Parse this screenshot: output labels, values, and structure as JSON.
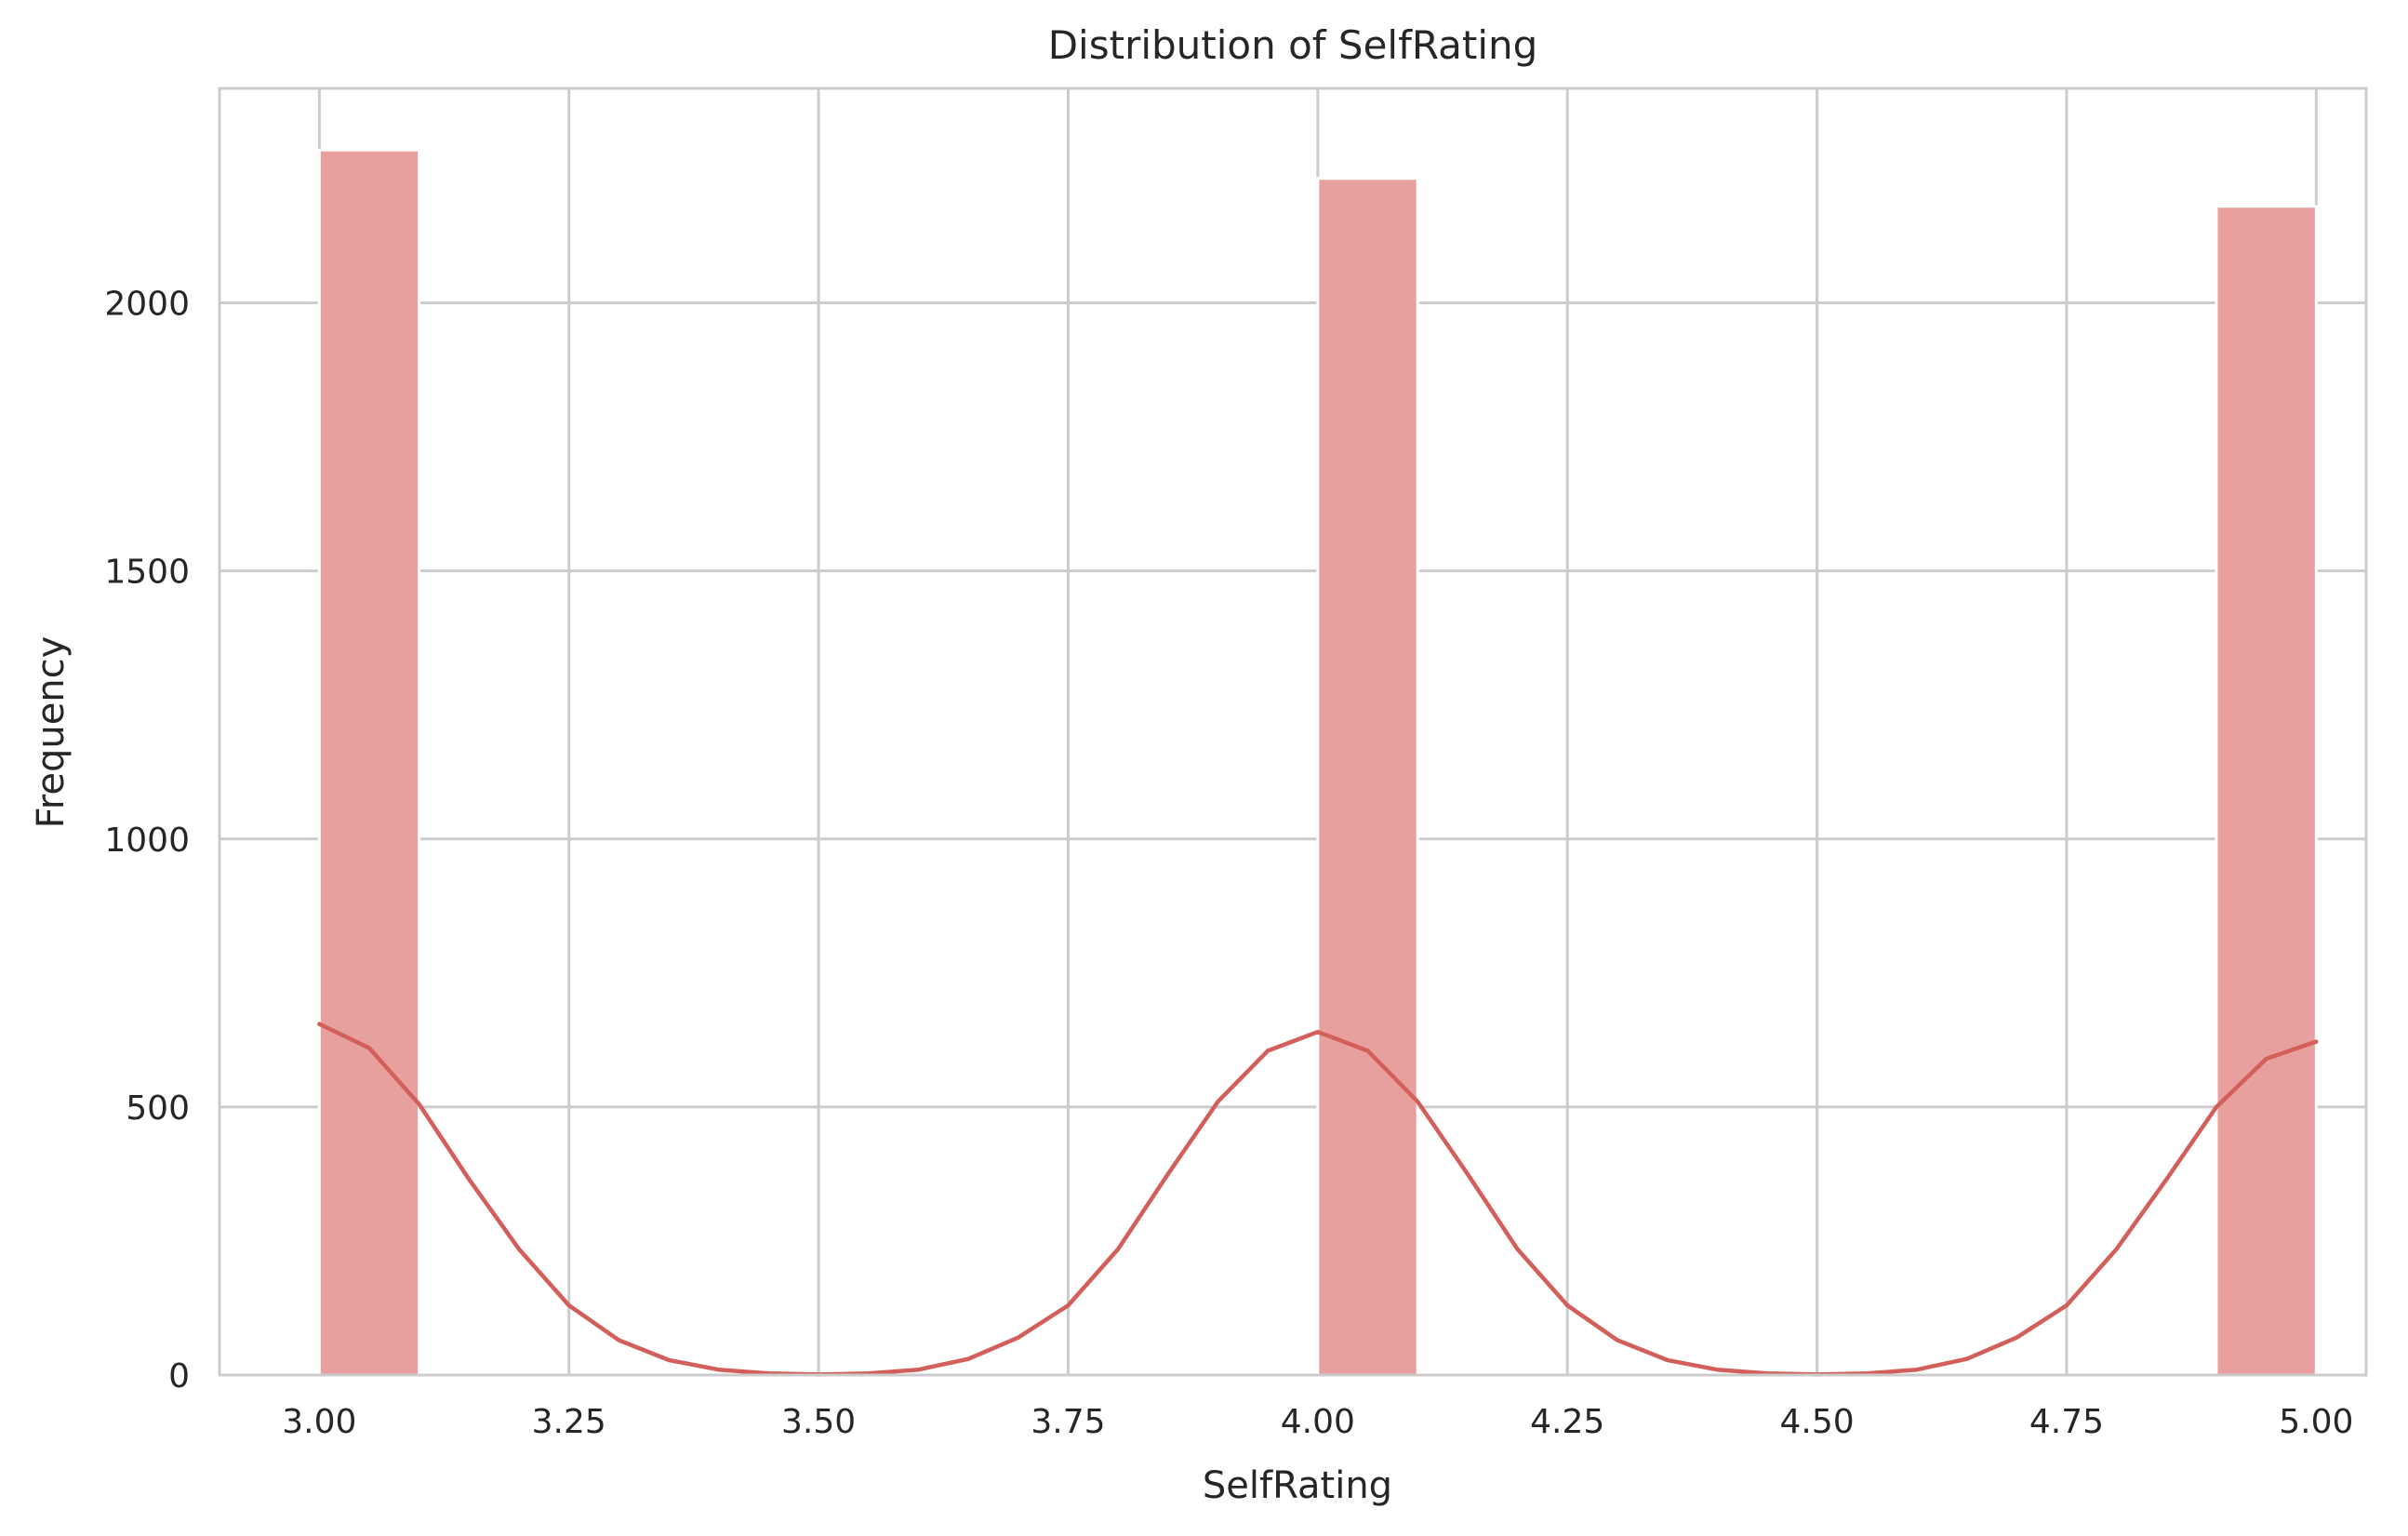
{
  "chart_data": {
    "type": "bar",
    "title": "Distribution of SelfRating",
    "xlabel": "SelfRating",
    "ylabel": "Frequency",
    "xlim": [
      2.9,
      5.05
    ],
    "ylim": [
      0,
      2400
    ],
    "x_ticks": [
      "3.00",
      "3.25",
      "3.50",
      "3.75",
      "4.00",
      "4.25",
      "4.50",
      "4.75",
      "5.00"
    ],
    "y_ticks": [
      "0",
      "500",
      "1000",
      "1500",
      "2000"
    ],
    "grid": true,
    "legend": "none",
    "bar_color": "#e8a09e",
    "line_color": "#d35f5a",
    "bars": [
      {
        "x_start": 3.0,
        "x_end": 3.1,
        "value": 2285
      },
      {
        "x_start": 4.0,
        "x_end": 4.1,
        "value": 2232
      },
      {
        "x_start": 4.9,
        "x_end": 5.0,
        "value": 2180
      }
    ],
    "kde": {
      "x": [
        3.0,
        3.05,
        3.1,
        3.15,
        3.2,
        3.25,
        3.3,
        3.35,
        3.4,
        3.45,
        3.5,
        3.55,
        3.6,
        3.65,
        3.7,
        3.75,
        3.8,
        3.85,
        3.9,
        3.95,
        4.0,
        4.05,
        4.1,
        4.15,
        4.2,
        4.25,
        4.3,
        4.35,
        4.4,
        4.45,
        4.5,
        4.55,
        4.6,
        4.65,
        4.7,
        4.75,
        4.8,
        4.85,
        4.9,
        4.95,
        5.0
      ],
      "y": [
        655,
        610,
        505,
        365,
        235,
        130,
        65,
        28,
        10,
        3,
        1,
        3,
        10,
        30,
        70,
        130,
        235,
        375,
        510,
        605,
        640,
        605,
        510,
        375,
        235,
        130,
        65,
        28,
        10,
        3,
        1,
        3,
        10,
        30,
        70,
        130,
        235,
        365,
        500,
        590,
        622
      ]
    }
  }
}
